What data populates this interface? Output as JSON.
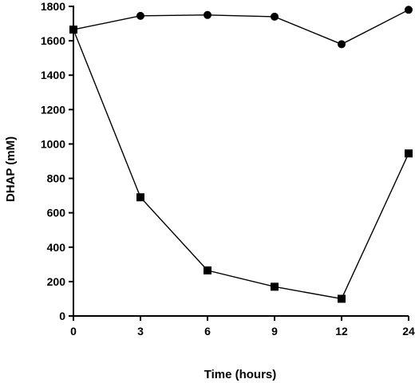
{
  "chart_data": {
    "type": "line",
    "title": "",
    "xlabel": "Time (hours)",
    "ylabel": "DHAP (mM)",
    "categories": [
      "0",
      "3",
      "6",
      "9",
      "12",
      "24"
    ],
    "ylim": [
      0,
      1800
    ],
    "yticks": [
      "0",
      "200",
      "400",
      "600",
      "800",
      "1000",
      "1200",
      "1400",
      "1600",
      "1800"
    ],
    "grid": false,
    "series": [
      {
        "marker": "circle",
        "values": [
          1665,
          1745,
          1750,
          1740,
          1580,
          1780
        ]
      },
      {
        "marker": "square",
        "values": [
          1665,
          690,
          265,
          170,
          100,
          945
        ]
      }
    ]
  }
}
